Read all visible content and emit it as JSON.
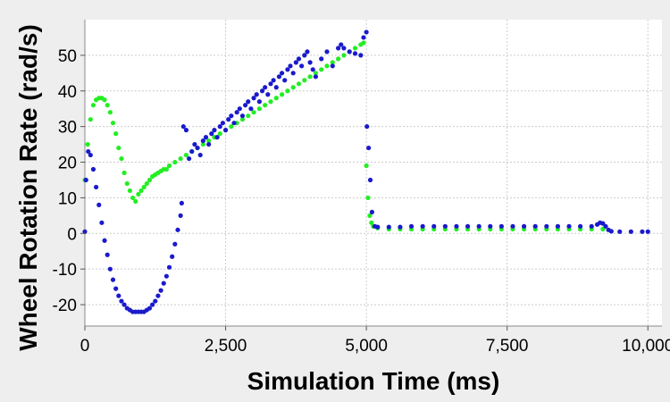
{
  "chart_data": {
    "type": "scatter",
    "title": "",
    "xlabel": "Simulation Time (ms)",
    "ylabel": "Wheel Rotation Rate (rad/s)",
    "xlim": [
      0,
      10250
    ],
    "ylim": [
      -26,
      60
    ],
    "xticks": [
      0,
      2500,
      5000,
      7500,
      10000
    ],
    "xtick_labels": [
      "0",
      "2,500",
      "5,000",
      "7,500",
      "10,000"
    ],
    "yticks": [
      -20,
      -10,
      0,
      10,
      20,
      30,
      40,
      50
    ],
    "ytick_labels": [
      "-20",
      "-10",
      "0",
      "10",
      "20",
      "30",
      "40",
      "50"
    ],
    "grid": true,
    "background": "#ffffff",
    "series": [
      {
        "color": "#22ee22",
        "points": [
          [
            0,
            15
          ],
          [
            50,
            25
          ],
          [
            100,
            32
          ],
          [
            150,
            36
          ],
          [
            200,
            37.5
          ],
          [
            250,
            38
          ],
          [
            300,
            38
          ],
          [
            350,
            37.5
          ],
          [
            400,
            36
          ],
          [
            450,
            34
          ],
          [
            500,
            31
          ],
          [
            550,
            28
          ],
          [
            600,
            24
          ],
          [
            650,
            21
          ],
          [
            700,
            17
          ],
          [
            750,
            14
          ],
          [
            800,
            12
          ],
          [
            850,
            10
          ],
          [
            900,
            9
          ],
          [
            950,
            11
          ],
          [
            1000,
            12
          ],
          [
            1050,
            13
          ],
          [
            1100,
            14
          ],
          [
            1150,
            15
          ],
          [
            1200,
            16
          ],
          [
            1250,
            16.5
          ],
          [
            1300,
            17
          ],
          [
            1350,
            17.5
          ],
          [
            1400,
            18
          ],
          [
            1450,
            18
          ],
          [
            1500,
            19
          ],
          [
            1600,
            20
          ],
          [
            1700,
            21
          ],
          [
            1800,
            22
          ],
          [
            1900,
            23
          ],
          [
            2000,
            24
          ],
          [
            2100,
            25
          ],
          [
            2200,
            26
          ],
          [
            2300,
            27
          ],
          [
            2400,
            28
          ],
          [
            2500,
            29
          ],
          [
            2600,
            30
          ],
          [
            2700,
            31
          ],
          [
            2800,
            32
          ],
          [
            2900,
            33
          ],
          [
            3000,
            34
          ],
          [
            3100,
            35
          ],
          [
            3200,
            36
          ],
          [
            3300,
            37
          ],
          [
            3400,
            38
          ],
          [
            3500,
            39
          ],
          [
            3600,
            40
          ],
          [
            3700,
            41
          ],
          [
            3800,
            42
          ],
          [
            3900,
            43
          ],
          [
            4000,
            44
          ],
          [
            4100,
            45
          ],
          [
            4200,
            46
          ],
          [
            4300,
            47
          ],
          [
            4400,
            48
          ],
          [
            4500,
            49
          ],
          [
            4600,
            50
          ],
          [
            4700,
            51
          ],
          [
            4800,
            52
          ],
          [
            4900,
            53
          ],
          [
            4950,
            53.5
          ],
          [
            5000,
            19
          ],
          [
            5030,
            10
          ],
          [
            5060,
            5
          ],
          [
            5090,
            3
          ],
          [
            5120,
            2
          ],
          [
            5200,
            1.5
          ],
          [
            5400,
            1.2
          ],
          [
            5600,
            1.2
          ],
          [
            5800,
            1.2
          ],
          [
            6000,
            1.2
          ],
          [
            6200,
            1.2
          ],
          [
            6400,
            1.2
          ],
          [
            6600,
            1.2
          ],
          [
            6800,
            1.2
          ],
          [
            7000,
            1.2
          ],
          [
            7200,
            1.2
          ],
          [
            7400,
            1.2
          ],
          [
            7600,
            1.2
          ],
          [
            7800,
            1.2
          ],
          [
            8000,
            1.2
          ],
          [
            8200,
            1.2
          ],
          [
            8400,
            1.2
          ],
          [
            8600,
            1.2
          ],
          [
            8800,
            1.2
          ],
          [
            9000,
            1.2
          ],
          [
            9200,
            1.2
          ]
        ]
      },
      {
        "color": "#1a1acc",
        "points": [
          [
            0,
            0.5
          ],
          [
            20,
            15
          ],
          [
            60,
            23
          ],
          [
            100,
            22
          ],
          [
            150,
            18
          ],
          [
            200,
            13
          ],
          [
            250,
            8
          ],
          [
            300,
            3
          ],
          [
            350,
            -2
          ],
          [
            400,
            -6
          ],
          [
            450,
            -10
          ],
          [
            500,
            -13
          ],
          [
            550,
            -15.5
          ],
          [
            600,
            -17.5
          ],
          [
            650,
            -19
          ],
          [
            700,
            -20
          ],
          [
            750,
            -21
          ],
          [
            800,
            -21.5
          ],
          [
            850,
            -22
          ],
          [
            900,
            -22
          ],
          [
            950,
            -22
          ],
          [
            1000,
            -22
          ],
          [
            1050,
            -22
          ],
          [
            1100,
            -21.5
          ],
          [
            1150,
            -21
          ],
          [
            1200,
            -20
          ],
          [
            1250,
            -19
          ],
          [
            1300,
            -17.5
          ],
          [
            1350,
            -16
          ],
          [
            1400,
            -14
          ],
          [
            1450,
            -12
          ],
          [
            1500,
            -9.5
          ],
          [
            1550,
            -6.5
          ],
          [
            1600,
            -3
          ],
          [
            1650,
            1
          ],
          [
            1700,
            5
          ],
          [
            1720,
            8.5
          ],
          [
            1750,
            30
          ],
          [
            1800,
            29
          ],
          [
            1850,
            21
          ],
          [
            1900,
            23
          ],
          [
            1950,
            25
          ],
          [
            2000,
            24
          ],
          [
            2050,
            22
          ],
          [
            2100,
            26
          ],
          [
            2150,
            27
          ],
          [
            2200,
            25
          ],
          [
            2250,
            28
          ],
          [
            2300,
            29
          ],
          [
            2350,
            27
          ],
          [
            2400,
            30
          ],
          [
            2450,
            31
          ],
          [
            2500,
            29
          ],
          [
            2550,
            32
          ],
          [
            2600,
            33
          ],
          [
            2650,
            31
          ],
          [
            2700,
            34
          ],
          [
            2750,
            35
          ],
          [
            2800,
            33
          ],
          [
            2850,
            36
          ],
          [
            2900,
            37
          ],
          [
            2950,
            35
          ],
          [
            3000,
            38
          ],
          [
            3050,
            39
          ],
          [
            3100,
            37
          ],
          [
            3150,
            40
          ],
          [
            3200,
            41
          ],
          [
            3250,
            39
          ],
          [
            3300,
            42
          ],
          [
            3350,
            43
          ],
          [
            3400,
            41
          ],
          [
            3450,
            44
          ],
          [
            3500,
            45
          ],
          [
            3550,
            43
          ],
          [
            3600,
            46
          ],
          [
            3650,
            47
          ],
          [
            3700,
            45
          ],
          [
            3750,
            48
          ],
          [
            3800,
            49
          ],
          [
            3850,
            47
          ],
          [
            3900,
            50
          ],
          [
            3950,
            51
          ],
          [
            4000,
            48
          ],
          [
            4050,
            46
          ],
          [
            4100,
            44
          ],
          [
            4200,
            49
          ],
          [
            4300,
            51
          ],
          [
            4400,
            47
          ],
          [
            4500,
            52
          ],
          [
            4550,
            53
          ],
          [
            4600,
            52
          ],
          [
            4700,
            51
          ],
          [
            4800,
            50.5
          ],
          [
            4900,
            50
          ],
          [
            4950,
            55
          ],
          [
            5000,
            56.5
          ],
          [
            5010,
            30
          ],
          [
            5040,
            24
          ],
          [
            5070,
            15
          ],
          [
            5100,
            6
          ],
          [
            5150,
            2
          ],
          [
            5200,
            1.8
          ],
          [
            5400,
            1.8
          ],
          [
            5600,
            1.8
          ],
          [
            5800,
            2
          ],
          [
            6000,
            2
          ],
          [
            6200,
            2
          ],
          [
            6400,
            2
          ],
          [
            6600,
            2
          ],
          [
            6800,
            2
          ],
          [
            7000,
            2
          ],
          [
            7200,
            2
          ],
          [
            7400,
            2
          ],
          [
            7600,
            2
          ],
          [
            7800,
            2
          ],
          [
            8000,
            2
          ],
          [
            8200,
            2
          ],
          [
            8400,
            2
          ],
          [
            8600,
            2
          ],
          [
            8800,
            2
          ],
          [
            9000,
            2
          ],
          [
            9100,
            2.5
          ],
          [
            9150,
            3
          ],
          [
            9200,
            2.8
          ],
          [
            9250,
            2
          ],
          [
            9300,
            1
          ],
          [
            9350,
            0.6
          ],
          [
            9500,
            0.5
          ],
          [
            9700,
            0.5
          ],
          [
            9900,
            0.5
          ],
          [
            10000,
            0.5
          ]
        ]
      }
    ]
  }
}
